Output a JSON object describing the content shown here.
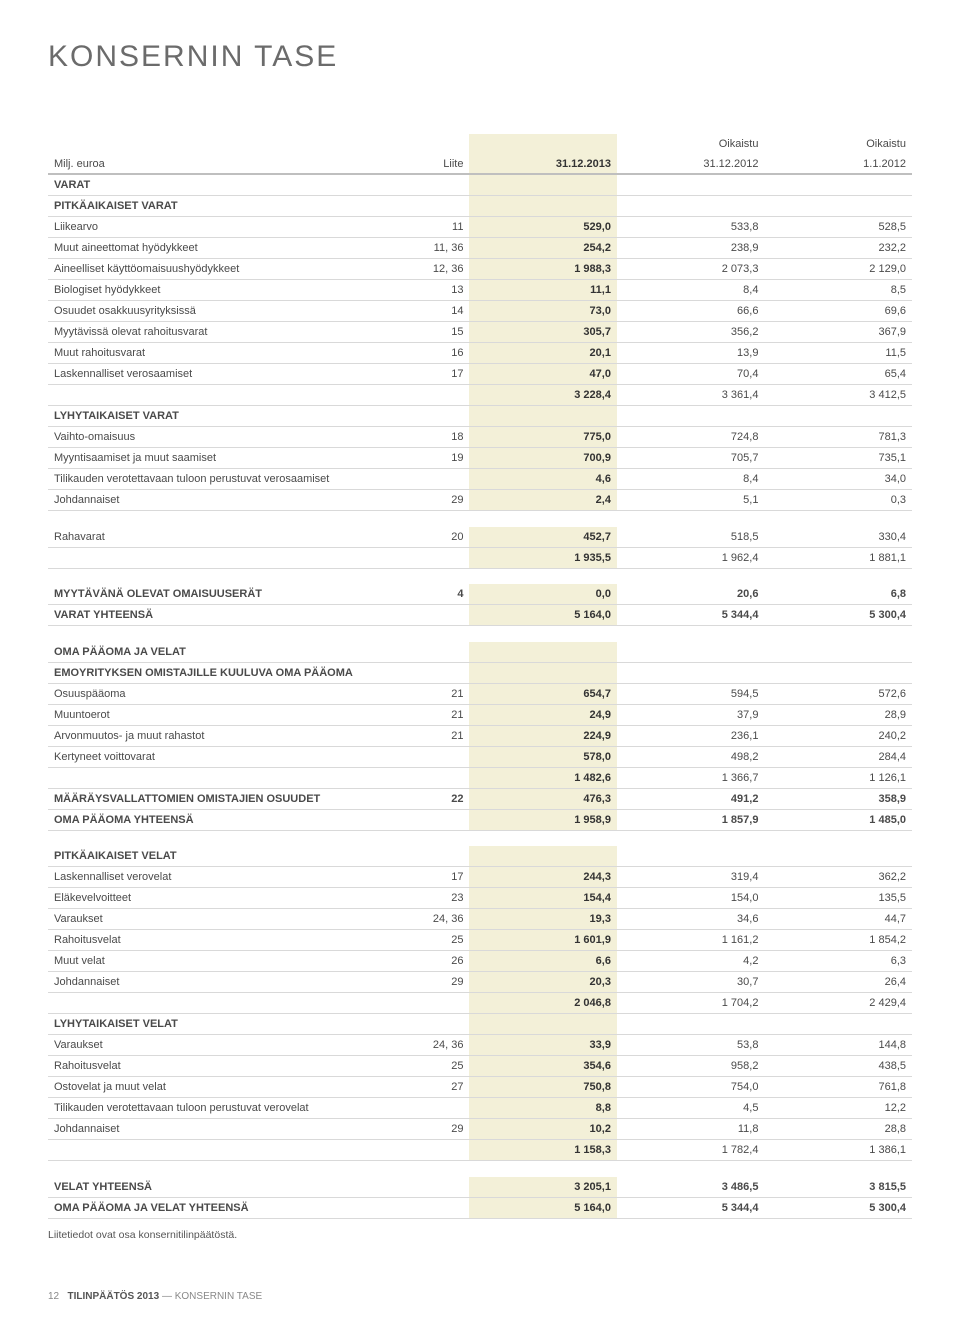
{
  "title": "KONSERNIN TASE",
  "colHeaders": {
    "milj": "Milj. euroa",
    "liite": "Liite",
    "d1": "31.12.2013",
    "d2": "31.12.2012",
    "d3": "1.1.2012",
    "oik": "Oikaistu"
  },
  "sections": [
    {
      "type": "section",
      "label": "VARAT"
    },
    {
      "type": "section",
      "label": "PITKÄAIKAISET VARAT"
    },
    {
      "label": "Liikearvo",
      "note": "11",
      "c1": "529,0",
      "c2": "533,8",
      "c3": "528,5"
    },
    {
      "label": "Muut aineettomat hyödykkeet",
      "note": "11, 36",
      "c1": "254,2",
      "c2": "238,9",
      "c3": "232,2"
    },
    {
      "label": "Aineelliset käyttöomaisuushyödykkeet",
      "note": "12, 36",
      "c1": "1 988,3",
      "c2": "2 073,3",
      "c3": "2 129,0"
    },
    {
      "label": "Biologiset hyödykkeet",
      "note": "13",
      "c1": "11,1",
      "c2": "8,4",
      "c3": "8,5"
    },
    {
      "label": "Osuudet osakkuusyrityksissä",
      "note": "14",
      "c1": "73,0",
      "c2": "66,6",
      "c3": "69,6"
    },
    {
      "label": "Myytävissä olevat rahoitusvarat",
      "note": "15",
      "c1": "305,7",
      "c2": "356,2",
      "c3": "367,9"
    },
    {
      "label": "Muut rahoitusvarat",
      "note": "16",
      "c1": "20,1",
      "c2": "13,9",
      "c3": "11,5"
    },
    {
      "label": "Laskennalliset verosaamiset",
      "note": "17",
      "c1": "47,0",
      "c2": "70,4",
      "c3": "65,4"
    },
    {
      "label": "",
      "note": "",
      "c1": "3 228,4",
      "c2": "3 361,4",
      "c3": "3 412,5"
    },
    {
      "type": "section",
      "label": "LYHYTAIKAISET VARAT"
    },
    {
      "label": "Vaihto-omaisuus",
      "note": "18",
      "c1": "775,0",
      "c2": "724,8",
      "c3": "781,3"
    },
    {
      "label": "Myyntisaamiset ja muut saamiset",
      "note": "19",
      "c1": "700,9",
      "c2": "705,7",
      "c3": "735,1"
    },
    {
      "label": "Tilikauden verotettavaan tuloon perustuvat verosaamiset",
      "note": "",
      "c1": "4,6",
      "c2": "8,4",
      "c3": "34,0"
    },
    {
      "label": "Johdannaiset",
      "note": "29",
      "c1": "2,4",
      "c2": "5,1",
      "c3": "0,3"
    },
    {
      "type": "spacer"
    },
    {
      "label": "Rahavarat",
      "note": "20",
      "c1": "452,7",
      "c2": "518,5",
      "c3": "330,4"
    },
    {
      "label": "",
      "note": "",
      "c1": "1 935,5",
      "c2": "1 962,4",
      "c3": "1 881,1"
    },
    {
      "type": "spacer"
    },
    {
      "type": "bold",
      "label": "MYYTÄVÄNÄ OLEVAT OMAISUUSERÄT",
      "note": "4",
      "c1": "0,0",
      "c2": "20,6",
      "c3": "6,8"
    },
    {
      "type": "bold",
      "label": "VARAT YHTEENSÄ",
      "note": "",
      "c1": "5 164,0",
      "c2": "5 344,4",
      "c3": "5 300,4"
    },
    {
      "type": "spacer"
    },
    {
      "type": "section",
      "label": "OMA PÄÄOMA JA VELAT"
    },
    {
      "type": "section",
      "label": "EMOYRITYKSEN OMISTAJILLE KUULUVA OMA PÄÄOMA"
    },
    {
      "label": "Osuuspääoma",
      "note": "21",
      "c1": "654,7",
      "c2": "594,5",
      "c3": "572,6"
    },
    {
      "label": "Muuntoerot",
      "note": "21",
      "c1": "24,9",
      "c2": "37,9",
      "c3": "28,9"
    },
    {
      "label": "Arvonmuutos- ja muut rahastot",
      "note": "21",
      "c1": "224,9",
      "c2": "236,1",
      "c3": "240,2"
    },
    {
      "label": "Kertyneet voittovarat",
      "note": "",
      "c1": "578,0",
      "c2": "498,2",
      "c3": "284,4"
    },
    {
      "label": "",
      "note": "",
      "c1": "1 482,6",
      "c2": "1 366,7",
      "c3": "1 126,1"
    },
    {
      "type": "bold",
      "label": "MÄÄRÄYSVALLATTOMIEN OMISTAJIEN OSUUDET",
      "note": "22",
      "c1": "476,3",
      "c2": "491,2",
      "c3": "358,9"
    },
    {
      "type": "bold",
      "label": "OMA PÄÄOMA YHTEENSÄ",
      "note": "",
      "c1": "1 958,9",
      "c2": "1 857,9",
      "c3": "1 485,0"
    },
    {
      "type": "spacer"
    },
    {
      "type": "section",
      "label": "PITKÄAIKAISET VELAT"
    },
    {
      "label": "Laskennalliset verovelat",
      "note": "17",
      "c1": "244,3",
      "c2": "319,4",
      "c3": "362,2"
    },
    {
      "label": "Eläkevelvoitteet",
      "note": "23",
      "c1": "154,4",
      "c2": "154,0",
      "c3": "135,5"
    },
    {
      "label": "Varaukset",
      "note": "24, 36",
      "c1": "19,3",
      "c2": "34,6",
      "c3": "44,7"
    },
    {
      "label": "Rahoitusvelat",
      "note": "25",
      "c1": "1 601,9",
      "c2": "1 161,2",
      "c3": "1 854,2"
    },
    {
      "label": "Muut velat",
      "note": "26",
      "c1": "6,6",
      "c2": "4,2",
      "c3": "6,3"
    },
    {
      "label": "Johdannaiset",
      "note": "29",
      "c1": "20,3",
      "c2": "30,7",
      "c3": "26,4"
    },
    {
      "label": "",
      "note": "",
      "c1": "2 046,8",
      "c2": "1 704,2",
      "c3": "2 429,4"
    },
    {
      "type": "section",
      "label": "LYHYTAIKAISET VELAT"
    },
    {
      "label": "Varaukset",
      "note": "24, 36",
      "c1": "33,9",
      "c2": "53,8",
      "c3": "144,8"
    },
    {
      "label": "Rahoitusvelat",
      "note": "25",
      "c1": "354,6",
      "c2": "958,2",
      "c3": "438,5"
    },
    {
      "label": "Ostovelat ja muut velat",
      "note": "27",
      "c1": "750,8",
      "c2": "754,0",
      "c3": "761,8"
    },
    {
      "label": "Tilikauden verotettavaan tuloon perustuvat verovelat",
      "note": "",
      "c1": "8,8",
      "c2": "4,5",
      "c3": "12,2"
    },
    {
      "label": "Johdannaiset",
      "note": "29",
      "c1": "10,2",
      "c2": "11,8",
      "c3": "28,8"
    },
    {
      "label": "",
      "note": "",
      "c1": "1 158,3",
      "c2": "1 782,4",
      "c3": "1 386,1"
    },
    {
      "type": "spacer"
    },
    {
      "type": "bold",
      "label": "VELAT YHTEENSÄ",
      "note": "",
      "c1": "3 205,1",
      "c2": "3 486,5",
      "c3": "3 815,5"
    },
    {
      "type": "bold",
      "label": "OMA PÄÄOMA JA VELAT YHTEENSÄ",
      "note": "",
      "c1": "5 164,0",
      "c2": "5 344,4",
      "c3": "5 300,4"
    }
  ],
  "footnote": "Liitetiedot ovat osa konsernitilinpäätöstä.",
  "footer": {
    "page": "12",
    "bold": "TILINPÄÄTÖS 2013",
    "rest": " — KONSERNIN TASE"
  }
}
